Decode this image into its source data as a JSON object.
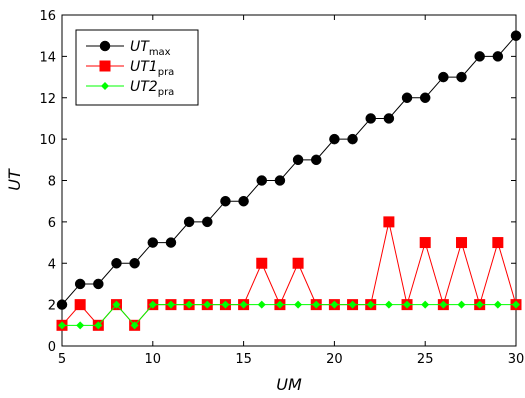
{
  "chart_data": {
    "type": "line",
    "xlabel": "UM",
    "ylabel": "UT",
    "xlim": [
      5,
      30
    ],
    "ylim": [
      0,
      16
    ],
    "x_ticks": [
      5,
      10,
      15,
      20,
      25,
      30
    ],
    "y_ticks": [
      0,
      2,
      4,
      6,
      8,
      10,
      12,
      14,
      16
    ],
    "grid": false,
    "legend_position": "top-left",
    "x": [
      5,
      6,
      7,
      8,
      9,
      10,
      11,
      12,
      13,
      14,
      15,
      16,
      17,
      18,
      19,
      20,
      21,
      22,
      23,
      24,
      25,
      26,
      27,
      28,
      29,
      30
    ],
    "series": [
      {
        "name": "UTmax",
        "name_main": "UT",
        "name_sub": "max",
        "color": "#000000",
        "marker": "circle",
        "values": [
          2,
          3,
          3,
          4,
          4,
          5,
          5,
          6,
          6,
          7,
          7,
          8,
          8,
          9,
          9,
          10,
          10,
          11,
          11,
          12,
          12,
          13,
          13,
          14,
          14,
          15
        ]
      },
      {
        "name": "UT1pra",
        "name_main": "UT1",
        "name_sub": "pra",
        "color": "#ff0000",
        "marker": "square",
        "values": [
          1,
          2,
          1,
          2,
          1,
          2,
          2,
          2,
          2,
          2,
          2,
          4,
          2,
          4,
          2,
          2,
          2,
          2,
          6,
          2,
          5,
          2,
          5,
          2,
          5,
          2
        ]
      },
      {
        "name": "UT2pra",
        "name_main": "UT2",
        "name_sub": "pra",
        "color": "#00ff00",
        "marker": "diamond",
        "values": [
          1,
          1,
          1,
          2,
          1,
          2,
          2,
          2,
          2,
          2,
          2,
          2,
          2,
          2,
          2,
          2,
          2,
          2,
          2,
          2,
          2,
          2,
          2,
          2,
          2,
          2
        ]
      }
    ]
  }
}
